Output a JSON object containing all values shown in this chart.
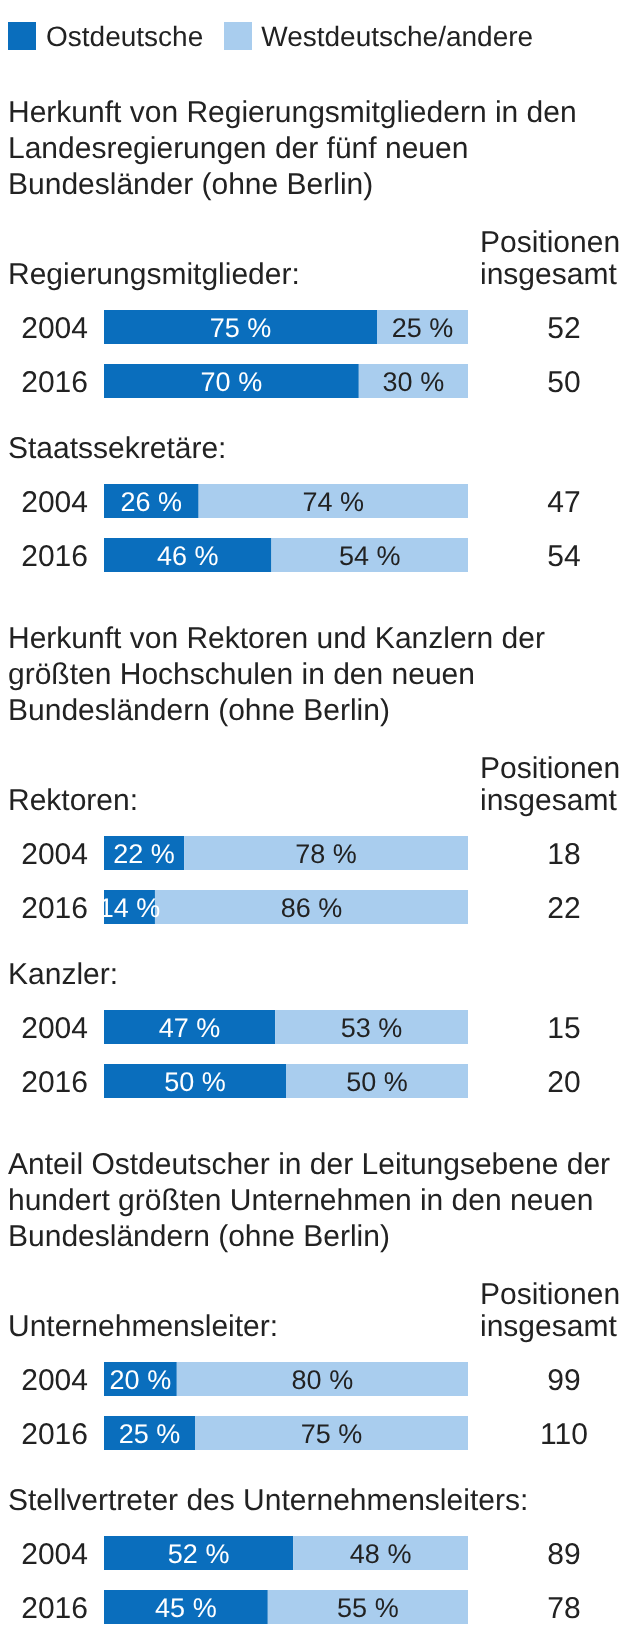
{
  "chart_data": [
    {
      "type": "bar",
      "orientation": "horizontal",
      "stacked": true,
      "legend": "top",
      "title": "Herkunft von Regierungsmitgliedern in den Landesregierungen der fünf neuen Bundesländer (ohne Berlin)",
      "subtitle": "Regierungsmitglieder:",
      "categories": [
        "2004",
        "2016"
      ],
      "xlim": [
        0,
        100
      ],
      "tick_labels": "y",
      "annotations": [
        "Positionen insgesamt",
        "52",
        "50"
      ],
      "series": [
        {
          "name": "Ostdeutsche",
          "color": "#0a6ebd",
          "values": [
            75,
            70
          ],
          "value_labels": [
            "75 %",
            "70 %"
          ]
        },
        {
          "name": "Westdeutsche/andere",
          "color": "#a9cdee",
          "values": [
            25,
            30
          ],
          "value_labels": [
            "25 %",
            "30 %"
          ]
        }
      ]
    },
    {
      "type": "bar",
      "orientation": "horizontal",
      "stacked": true,
      "subtitle": "Staatssekretäre:",
      "categories": [
        "2004",
        "2016"
      ],
      "xlim": [
        0,
        100
      ],
      "tick_labels": "y",
      "annotations": [
        "47",
        "54"
      ],
      "series": [
        {
          "color": "#0a6ebd",
          "values": [
            26,
            46
          ],
          "value_labels": [
            "26 %",
            "46 %"
          ]
        },
        {
          "color": "#a9cdee",
          "values": [
            74,
            54
          ],
          "value_labels": [
            "74 %",
            "54 %"
          ]
        }
      ]
    },
    {
      "type": "bar",
      "orientation": "horizontal",
      "stacked": true,
      "title": "Herkunft von Rektoren und Kanzlern der größten Hochschulen in den neuen Bundesländern (ohne Berlin)",
      "subtitle": "Rektoren:",
      "categories": [
        "2004",
        "2016"
      ],
      "xlim": [
        0,
        100
      ],
      "tick_labels": "y",
      "annotations": [
        "Positionen insgesamt",
        "18",
        "22"
      ],
      "series": [
        {
          "color": "#0a6ebd",
          "values": [
            22,
            14
          ],
          "value_labels": [
            "22 %",
            "14 %"
          ]
        },
        {
          "color": "#a9cdee",
          "values": [
            78,
            86
          ],
          "value_labels": [
            "78 %",
            "86 %"
          ]
        }
      ]
    },
    {
      "type": "bar",
      "orientation": "horizontal",
      "stacked": true,
      "subtitle": "Kanzler:",
      "categories": [
        "2004",
        "2016"
      ],
      "xlim": [
        0,
        100
      ],
      "tick_labels": "y",
      "annotations": [
        "15",
        "20"
      ],
      "series": [
        {
          "color": "#0a6ebd",
          "values": [
            47,
            50
          ],
          "value_labels": [
            "47 %",
            "50 %"
          ]
        },
        {
          "color": "#a9cdee",
          "values": [
            53,
            50
          ],
          "value_labels": [
            "53 %",
            "50 %"
          ]
        }
      ]
    },
    {
      "type": "bar",
      "orientation": "horizontal",
      "stacked": true,
      "title": "Anteil Ostdeutscher in der Leitungsebene der hundert größten Unternehmen in den neuen Bundesländern (ohne Berlin)",
      "subtitle": "Unternehmensleiter:",
      "categories": [
        "2004",
        "2016"
      ],
      "xlim": [
        0,
        100
      ],
      "tick_labels": "y",
      "annotations": [
        "Positionen insgesamt",
        "99",
        "110"
      ],
      "series": [
        {
          "color": "#0a6ebd",
          "values": [
            20,
            25
          ],
          "value_labels": [
            "20 %",
            "25 %"
          ]
        },
        {
          "color": "#a9cdee",
          "values": [
            80,
            75
          ],
          "value_labels": [
            "80 %",
            "75 %"
          ]
        }
      ]
    },
    {
      "type": "bar",
      "orientation": "horizontal",
      "stacked": true,
      "subtitle": "Stellvertreter des Unternehmensleiters:",
      "categories": [
        "2004",
        "2016"
      ],
      "xlim": [
        0,
        100
      ],
      "tick_labels": "y",
      "annotations": [
        "89",
        "78"
      ],
      "series": [
        {
          "color": "#0a6ebd",
          "values": [
            52,
            45
          ],
          "value_labels": [
            "52 %",
            "45 %"
          ]
        },
        {
          "color": "#a9cdee",
          "values": [
            48,
            55
          ],
          "value_labels": [
            "48 %",
            "55 %"
          ]
        }
      ]
    }
  ]
}
